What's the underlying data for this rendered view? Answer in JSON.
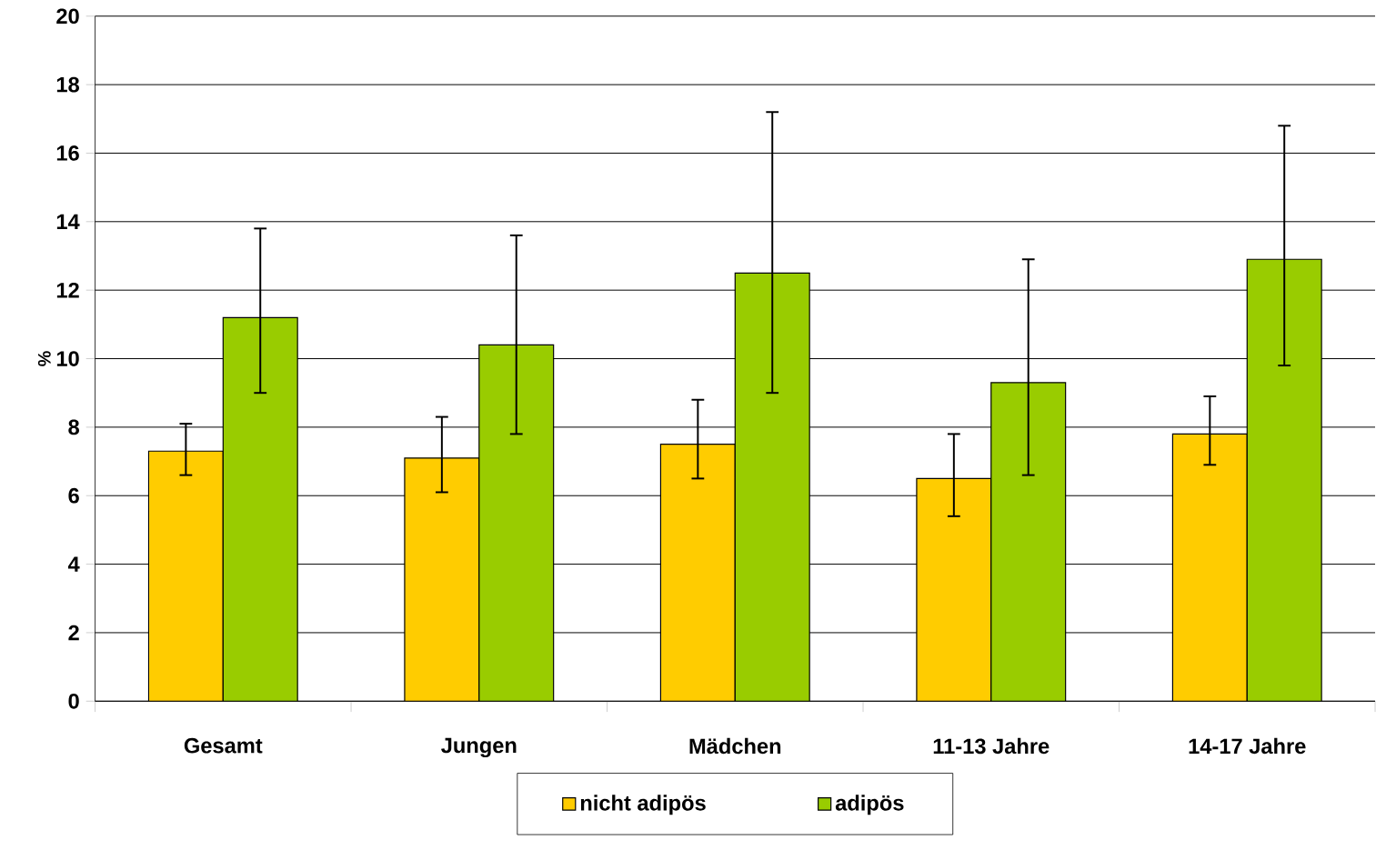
{
  "chart_data": {
    "type": "bar",
    "ylabel": "%",
    "categories": [
      "Gesamt",
      "Jungen",
      "Mädchen",
      "11-13 Jahre",
      "14-17 Jahre"
    ],
    "series": [
      {
        "name": "nicht adipös",
        "color": "#ffcc00",
        "values": [
          7.3,
          7.1,
          7.5,
          6.5,
          7.8
        ],
        "errors": [
          [
            6.6,
            8.1
          ],
          [
            6.1,
            8.3
          ],
          [
            6.5,
            8.8
          ],
          [
            5.4,
            7.8
          ],
          [
            6.9,
            8.9
          ]
        ]
      },
      {
        "name": "adipös",
        "color": "#99cc00",
        "values": [
          11.2,
          10.4,
          12.5,
          9.3,
          12.9
        ],
        "errors": [
          [
            9.0,
            13.8
          ],
          [
            7.8,
            13.6
          ],
          [
            9.0,
            17.2
          ],
          [
            6.6,
            12.9
          ],
          [
            9.8,
            16.8
          ]
        ]
      }
    ],
    "ylim": [
      0,
      20
    ],
    "yticks": [
      0,
      2,
      4,
      6,
      8,
      10,
      12,
      14,
      16,
      18,
      20
    ],
    "grid": "y",
    "legend": "bottom"
  }
}
